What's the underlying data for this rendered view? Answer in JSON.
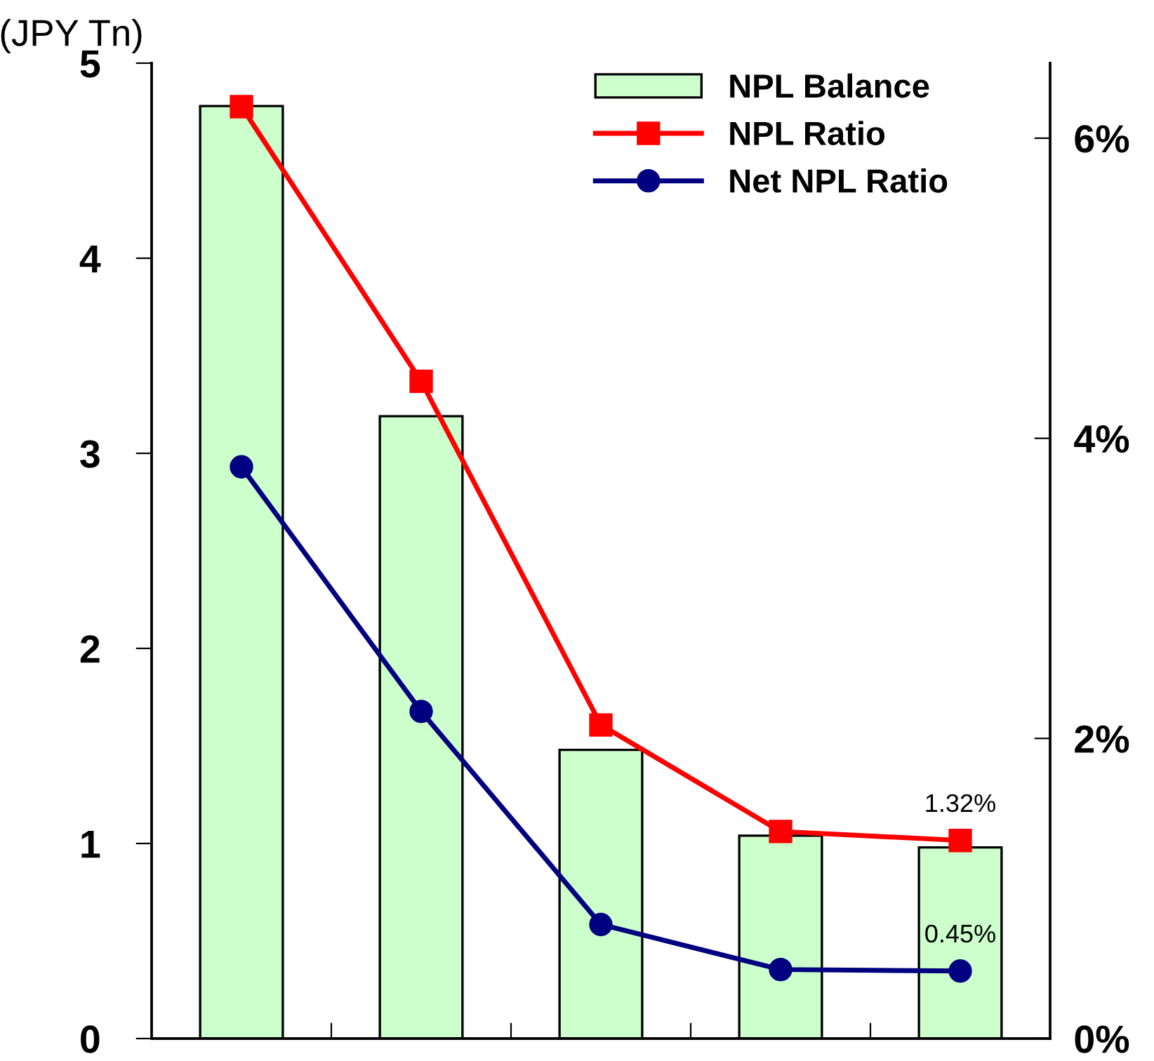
{
  "chart_data": {
    "type": "bar",
    "ylabel": "(JPY Tn)",
    "categories": [
      null,
      null,
      null,
      null,
      null
    ],
    "series": [
      {
        "name": "NPL Balance",
        "color": "#ccffcc",
        "values": [
          4.78,
          3.19,
          1.48,
          1.04,
          0.98
        ]
      },
      {
        "name": "NPL Ratio",
        "type": "line",
        "axis": "y2",
        "color": "#ff0000",
        "marker": "square",
        "values": [
          6.21,
          4.38,
          2.09,
          1.38,
          1.32
        ],
        "value_labels": [
          null,
          null,
          null,
          null,
          "1.32%"
        ]
      },
      {
        "name": "Net NPL Ratio",
        "type": "line",
        "axis": "y2",
        "color": "#000080",
        "marker": "circle",
        "values": [
          3.81,
          2.18,
          0.76,
          0.46,
          0.45
        ],
        "value_labels": [
          null,
          null,
          null,
          null,
          "0.45%"
        ]
      }
    ],
    "ylim": [
      0,
      5
    ],
    "yticks": [
      0,
      1,
      2,
      3,
      4,
      5
    ],
    "y2lim": [
      0,
      6.5
    ],
    "y2ticks": [
      {
        "value": 0,
        "label": "0%"
      },
      {
        "value": 2,
        "label": "2%"
      },
      {
        "value": 4,
        "label": "4%"
      },
      {
        "value": 6,
        "label": "6%"
      }
    ],
    "legend": "top right",
    "grid": false
  }
}
